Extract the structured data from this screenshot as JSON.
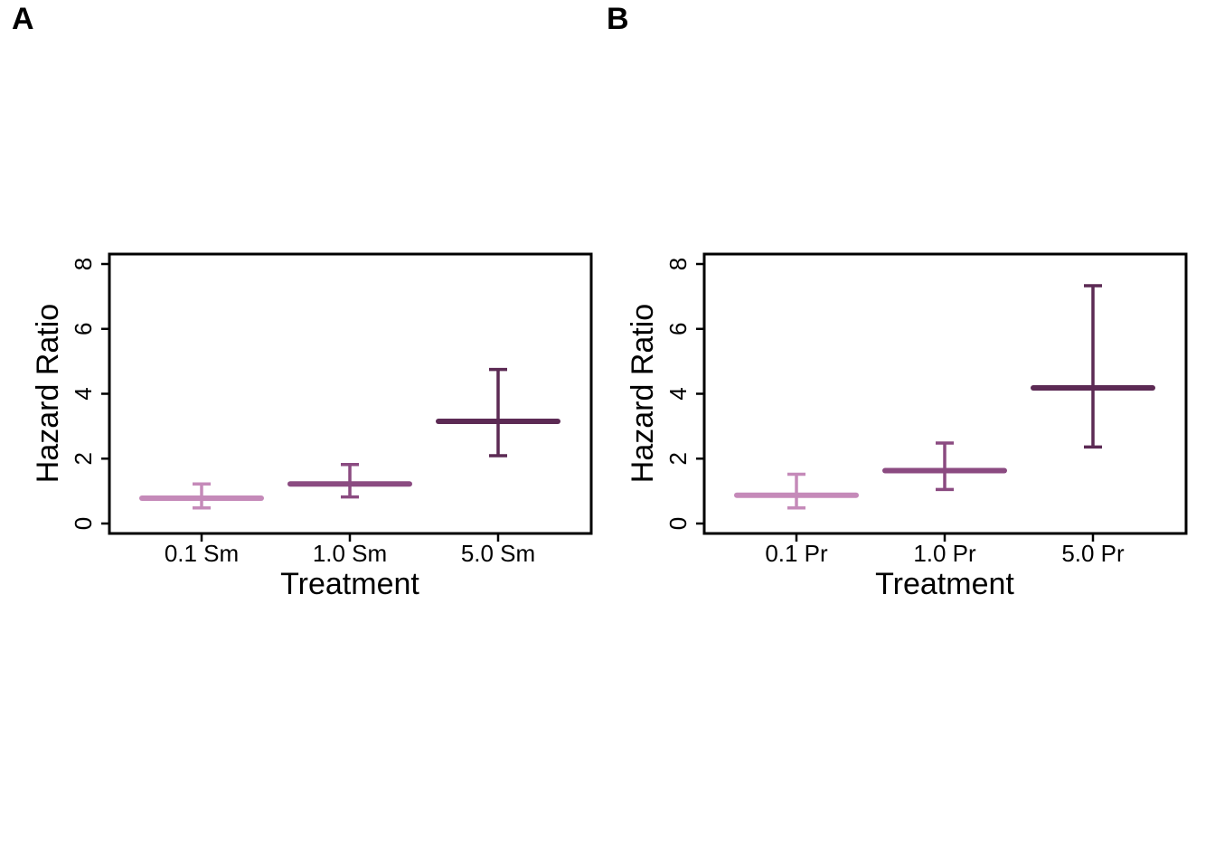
{
  "panels": [
    {
      "letter": "A"
    },
    {
      "letter": "B"
    }
  ],
  "chart_data": [
    {
      "type": "scatter",
      "categories": [
        "0.1 Sm",
        "1.0 Sm",
        "5.0 Sm"
      ],
      "values": [
        0.78,
        1.22,
        3.15
      ],
      "lower": [
        0.48,
        0.82,
        2.09
      ],
      "upper": [
        1.22,
        1.82,
        4.75
      ],
      "colors": [
        "#c58ab9",
        "#8b4b81",
        "#5c2a54"
      ],
      "xlabel": "Treatment",
      "ylabel": "Hazard Ratio",
      "ylim": [
        0,
        8
      ],
      "yticks": [
        "0",
        "2",
        "4",
        "6",
        "8"
      ],
      "grid": false
    },
    {
      "type": "scatter",
      "categories": [
        "0.1 Pr",
        "1.0 Pr",
        "5.0 Pr"
      ],
      "values": [
        0.87,
        1.63,
        4.18
      ],
      "lower": [
        0.48,
        1.05,
        2.36
      ],
      "upper": [
        1.52,
        2.48,
        7.33
      ],
      "colors": [
        "#c58ab9",
        "#8b4b81",
        "#5c2a54"
      ],
      "xlabel": "Treatment",
      "ylabel": "Hazard Ratio",
      "ylim": [
        0,
        8
      ],
      "yticks": [
        "0",
        "2",
        "4",
        "6",
        "8"
      ],
      "grid": false
    }
  ]
}
